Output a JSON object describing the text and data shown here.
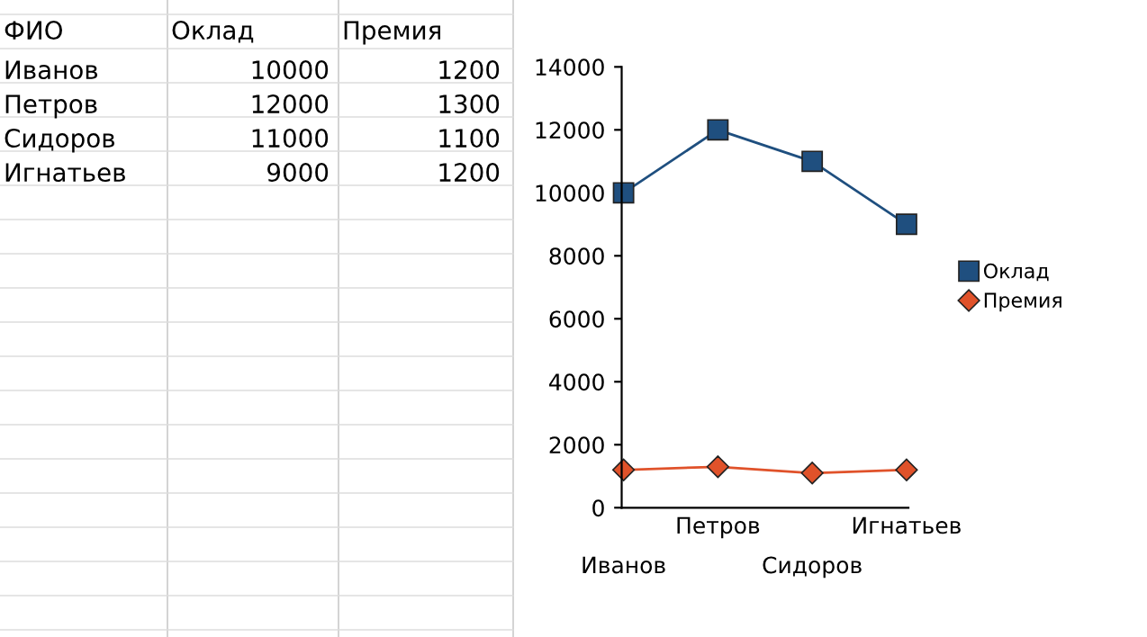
{
  "chart_data": {
    "type": "line",
    "categories": [
      "Иванов",
      "Петров",
      "Сидоров",
      "Игнатьев"
    ],
    "series": [
      {
        "name": "Оклад",
        "color": "#1f4f7f",
        "values": [
          10000,
          12000,
          11000,
          9000
        ],
        "marker": "square"
      },
      {
        "name": "Премия",
        "color": "#e0522a",
        "values": [
          1200,
          1300,
          1100,
          1200
        ],
        "marker": "diamond"
      }
    ],
    "ylim": [
      0,
      14000
    ],
    "yticks": [
      0,
      2000,
      4000,
      6000,
      8000,
      10000,
      12000,
      14000
    ],
    "legend": "right",
    "annotations": [
      "ФИО",
      "10000",
      "1200",
      "12000",
      "1300",
      "11000",
      "1100",
      "9000",
      "1200"
    ]
  }
}
